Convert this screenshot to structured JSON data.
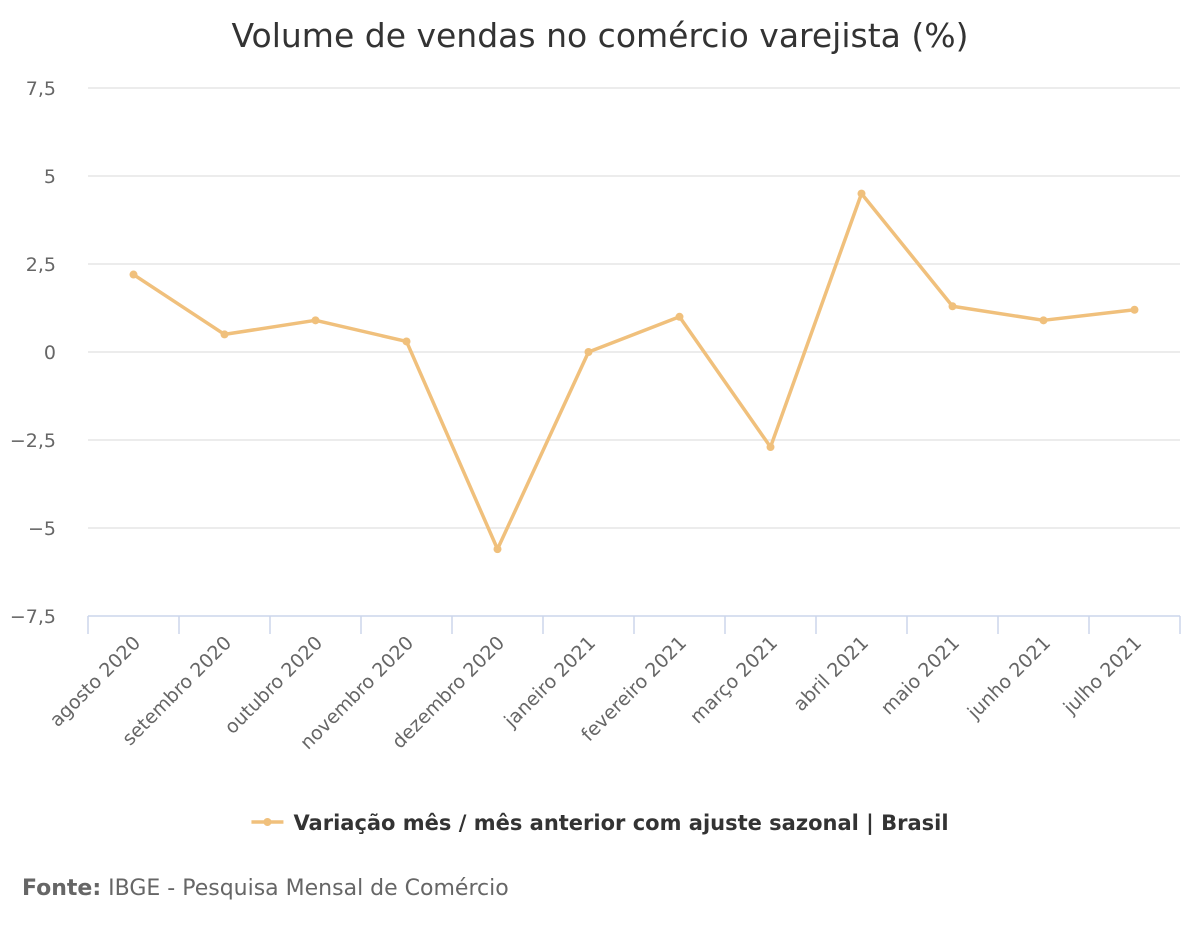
{
  "chart_data": {
    "type": "line",
    "title": "Volume de vendas no comércio varejista (%)",
    "xlabel": "",
    "ylabel": "",
    "categories": [
      "agosto 2020",
      "setembro 2020",
      "outubro 2020",
      "novembro 2020",
      "dezembro 2020",
      "janeiro 2021",
      "fevereiro 2021",
      "março 2021",
      "abril 2021",
      "maio 2021",
      "junho 2021",
      "julho 2021"
    ],
    "series": [
      {
        "name": "Variação mês / mês anterior com ajuste sazonal | Brasil",
        "color": "#f0c07c",
        "values": [
          2.2,
          0.5,
          0.9,
          0.3,
          -5.6,
          0.0,
          1.0,
          -2.7,
          4.5,
          1.3,
          0.9,
          1.2
        ]
      }
    ],
    "ylim": [
      -7.5,
      7.5
    ],
    "yticks": [
      7.5,
      5,
      2.5,
      0,
      -2.5,
      -5,
      -7.5
    ],
    "ytick_labels": [
      "7,5",
      "5",
      "2,5",
      "0",
      "−2,5",
      "−5",
      "−7,5"
    ],
    "grid": true,
    "legend_position": "bottom-center"
  },
  "source": {
    "label": "Fonte:",
    "text": "IBGE - Pesquisa Mensal de Comércio"
  }
}
